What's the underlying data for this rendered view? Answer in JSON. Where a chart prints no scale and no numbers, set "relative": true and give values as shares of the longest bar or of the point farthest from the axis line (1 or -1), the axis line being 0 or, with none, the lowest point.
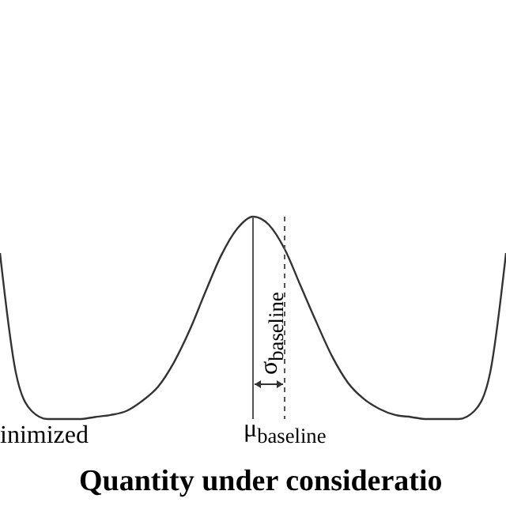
{
  "chart_data": {
    "type": "line",
    "relative": true,
    "xlabel": "Quantity under consideratio",
    "categories": [
      null,
      null,
      null,
      null,
      null,
      null,
      null,
      null,
      null,
      null,
      null,
      null,
      null,
      null,
      null,
      null,
      null,
      null,
      null,
      null,
      null,
      null,
      null,
      null,
      null,
      null,
      null,
      null,
      null,
      null,
      null,
      null,
      null
    ],
    "series": [
      {
        "color": "#333333",
        "values": [
          0.82,
          0.23,
          0.04,
          0,
          0,
          0,
          0.01,
          0.02,
          0.04,
          0.09,
          0.16,
          0.28,
          0.44,
          0.63,
          0.81,
          0.94,
          1,
          0.96,
          0.84,
          0.66,
          0.48,
          0.31,
          0.18,
          0.1,
          0.05,
          0.02,
          0.01,
          0,
          0,
          0,
          0.04,
          0.23,
          0.82
        ]
      }
    ],
    "annotations": [
      "inimized",
      "μ$_{baseline}$",
      "σ$_{baseline}$"
    ],
    "marker": "none",
    "line_style": "solid",
    "grid": false,
    "legend": false
  }
}
